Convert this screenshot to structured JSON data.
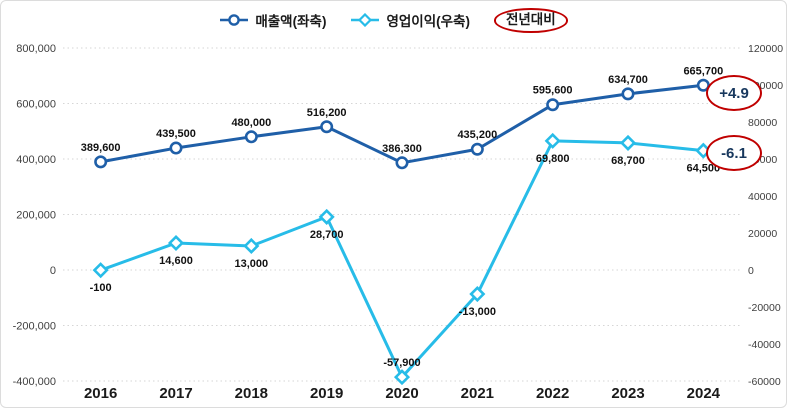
{
  "colors": {
    "revenue_line": "#1f5fa8",
    "profit_line": "#27bce8",
    "highlight_red": "#c00000",
    "annotation_text": "#17375d",
    "gridline": "#d6d6d6"
  },
  "chart_data": {
    "type": "line",
    "title": "",
    "xlabel": "",
    "ylabel_left": "",
    "ylabel_right": "",
    "grid": true,
    "legend_position": "top",
    "x": [
      "2016",
      "2017",
      "2018",
      "2019",
      "2020",
      "2021",
      "2022",
      "2023",
      "2024"
    ],
    "series": [
      {
        "name": "매출액(좌축)",
        "axis": "left",
        "color": "#1f5fa8",
        "marker": "circle",
        "values": [
          389600,
          439500,
          480000,
          516200,
          386300,
          435200,
          595600,
          634700,
          665700
        ],
        "labels": [
          "389,600",
          "439,500",
          "480,000",
          "516,200",
          "386,300",
          "435,200",
          "595,600",
          "634,700",
          "665,700"
        ],
        "label_positions": [
          "above",
          "above",
          "above",
          "above",
          "above",
          "above",
          "above",
          "above",
          "above"
        ]
      },
      {
        "name": "영업이익(우축)",
        "axis": "right",
        "color": "#27bce8",
        "marker": "diamond",
        "values": [
          -100,
          14600,
          13000,
          28700,
          -57900,
          -13000,
          69800,
          68700,
          64500
        ],
        "labels": [
          "-100",
          "14,600",
          "13,000",
          "28,700",
          "-57,900",
          "-13,000",
          "69,800",
          "68,700",
          "64,500"
        ],
        "label_positions": [
          "below",
          "below",
          "below",
          "below",
          "above",
          "below",
          "below",
          "below",
          "below"
        ]
      }
    ],
    "left_axis": {
      "min": -400000,
      "max": 800000,
      "ticks": [
        {
          "value": 800000,
          "label": "800,000"
        },
        {
          "value": 600000,
          "label": "600,000"
        },
        {
          "value": 400000,
          "label": "400,000"
        },
        {
          "value": 200000,
          "label": "200,000"
        },
        {
          "value": 0,
          "label": "0"
        },
        {
          "value": -200000,
          "label": "-200,000"
        },
        {
          "value": -400000,
          "label": "-400,000"
        }
      ]
    },
    "right_axis": {
      "min": -60000,
      "max": 120000,
      "ticks": [
        {
          "value": 120000,
          "label": "120000"
        },
        {
          "value": 100000,
          "label": "100000"
        },
        {
          "value": 80000,
          "label": "80000"
        },
        {
          "value": 60000,
          "label": "60000"
        },
        {
          "value": 40000,
          "label": "40000"
        },
        {
          "value": 20000,
          "label": "20000"
        },
        {
          "value": 0,
          "label": "0"
        },
        {
          "value": -20000,
          "label": "-20000"
        },
        {
          "value": -40000,
          "label": "-40000"
        },
        {
          "value": -60000,
          "label": "-60000"
        }
      ]
    },
    "legend_extra": "전년대비",
    "annotations": [
      {
        "text": "+4.9",
        "refers_to": "매출액(좌축) 2024"
      },
      {
        "text": "-6.1",
        "refers_to": "영업이익(우축) 2024"
      }
    ]
  }
}
